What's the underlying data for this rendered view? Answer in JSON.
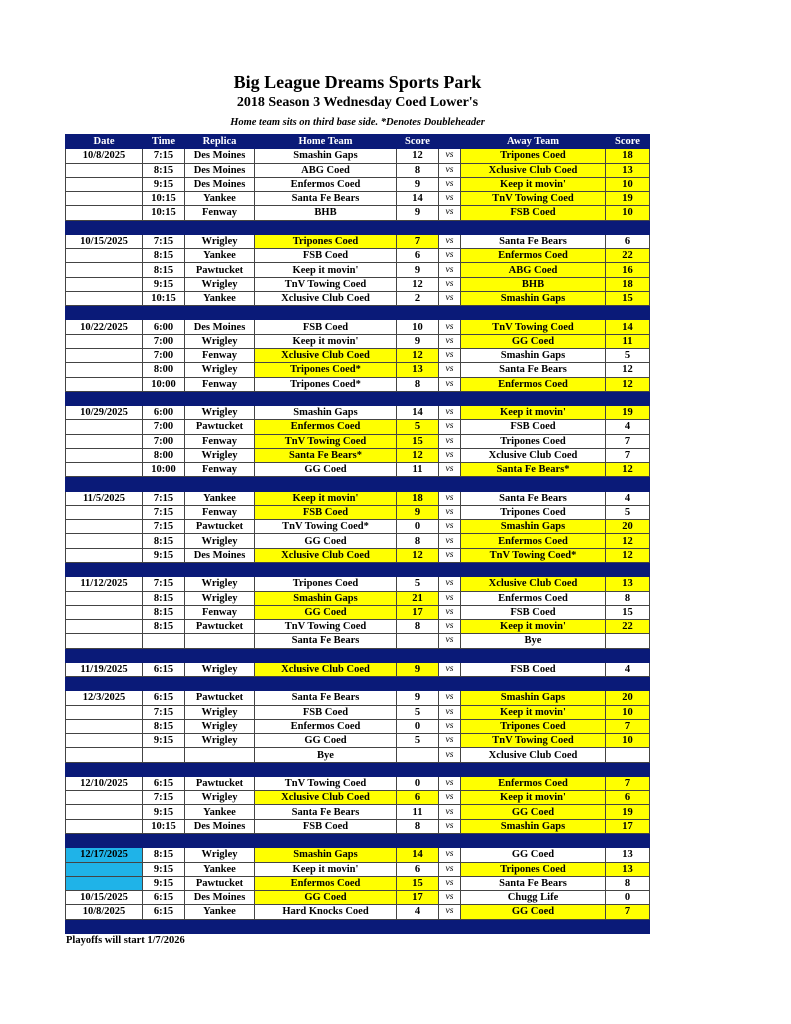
{
  "title": "Big League Dreams Sports Park",
  "subtitle": "2018 Season 3 Wednesday Coed Lower's",
  "note": "Home team sits on third base side.  *Denotes Doubleheader",
  "columns": [
    "Date",
    "Time",
    "Replica",
    "Home Team",
    "Score",
    "",
    "Away Team",
    "Score"
  ],
  "vs_label": "vs",
  "colors": {
    "header": "#0a1a78",
    "winner": "#ffff00",
    "highlight_date": "#1fb3e8"
  },
  "groups": [
    {
      "rows": [
        {
          "date": "10/8/2025",
          "time": "7:15",
          "replica": "Des Moines",
          "home": "Smashin Gaps",
          "hs": "12",
          "away": "Tripones Coed",
          "as": "18",
          "win": "a"
        },
        {
          "date": "",
          "time": "8:15",
          "replica": "Des Moines",
          "home": "ABG Coed",
          "hs": "8",
          "away": "Xclusive Club Coed",
          "as": "13",
          "win": "a"
        },
        {
          "date": "",
          "time": "9:15",
          "replica": "Des Moines",
          "home": "Enfermos Coed",
          "hs": "9",
          "away": "Keep it movin'",
          "as": "10",
          "win": "a"
        },
        {
          "date": "",
          "time": "10:15",
          "replica": "Yankee",
          "home": "Santa Fe Bears",
          "hs": "14",
          "away": "TnV Towing Coed",
          "as": "19",
          "win": "a"
        },
        {
          "date": "",
          "time": "10:15",
          "replica": "Fenway",
          "home": "BHB",
          "hs": "9",
          "away": "FSB Coed",
          "as": "10",
          "win": "a"
        }
      ]
    },
    {
      "rows": [
        {
          "date": "10/15/2025",
          "time": "7:15",
          "replica": "Wrigley",
          "home": "Tripones Coed",
          "hs": "7",
          "away": "Santa Fe Bears",
          "as": "6",
          "win": "h"
        },
        {
          "date": "",
          "time": "8:15",
          "replica": "Yankee",
          "home": "FSB Coed",
          "hs": "6",
          "away": "Enfermos Coed",
          "as": "22",
          "win": "a"
        },
        {
          "date": "",
          "time": "8:15",
          "replica": "Pawtucket",
          "home": "Keep it movin'",
          "hs": "9",
          "away": "ABG Coed",
          "as": "16",
          "win": "a"
        },
        {
          "date": "",
          "time": "9:15",
          "replica": "Wrigley",
          "home": "TnV Towing Coed",
          "hs": "12",
          "away": "BHB",
          "as": "18",
          "win": "a"
        },
        {
          "date": "",
          "time": "10:15",
          "replica": "Yankee",
          "home": "Xclusive Club Coed",
          "hs": "2",
          "away": "Smashin Gaps",
          "as": "15",
          "win": "a"
        }
      ]
    },
    {
      "rows": [
        {
          "date": "10/22/2025",
          "time": "6:00",
          "replica": "Des Moines",
          "home": "FSB Coed",
          "hs": "10",
          "away": "TnV Towing Coed",
          "as": "14",
          "win": "a"
        },
        {
          "date": "",
          "time": "7:00",
          "replica": "Wrigley",
          "home": "Keep it movin'",
          "hs": "9",
          "away": "GG Coed",
          "as": "11",
          "win": "a"
        },
        {
          "date": "",
          "time": "7:00",
          "replica": "Fenway",
          "home": "Xclusive Club Coed",
          "hs": "12",
          "away": "Smashin Gaps",
          "as": "5",
          "win": "h"
        },
        {
          "date": "",
          "time": "8:00",
          "replica": "Wrigley",
          "home": "Tripones Coed*",
          "hs": "13",
          "away": "Santa Fe Bears",
          "as": "12",
          "win": "h"
        },
        {
          "date": "",
          "time": "10:00",
          "replica": "Fenway",
          "home": "Tripones Coed*",
          "hs": "8",
          "away": "Enfermos Coed",
          "as": "12",
          "win": "a"
        }
      ]
    },
    {
      "rows": [
        {
          "date": "10/29/2025",
          "time": "6:00",
          "replica": "Wrigley",
          "home": "Smashin Gaps",
          "hs": "14",
          "away": "Keep it movin'",
          "as": "19",
          "win": "a"
        },
        {
          "date": "",
          "time": "7:00",
          "replica": "Pawtucket",
          "home": "Enfermos Coed",
          "hs": "5",
          "away": "FSB Coed",
          "as": "4",
          "win": "h"
        },
        {
          "date": "",
          "time": "7:00",
          "replica": "Fenway",
          "home": "TnV Towing Coed",
          "hs": "15",
          "away": "Tripones Coed",
          "as": "7",
          "win": "h"
        },
        {
          "date": "",
          "time": "8:00",
          "replica": "Wrigley",
          "home": "Santa Fe Bears*",
          "hs": "12",
          "away": "Xclusive Club Coed",
          "as": "7",
          "win": "h"
        },
        {
          "date": "",
          "time": "10:00",
          "replica": "Fenway",
          "home": "GG Coed",
          "hs": "11",
          "away": "Santa Fe Bears*",
          "as": "12",
          "win": "a"
        }
      ]
    },
    {
      "rows": [
        {
          "date": "11/5/2025",
          "time": "7:15",
          "replica": "Yankee",
          "home": "Keep it movin'",
          "hs": "18",
          "away": "Santa Fe Bears",
          "as": "4",
          "win": "h"
        },
        {
          "date": "",
          "time": "7:15",
          "replica": "Fenway",
          "home": "FSB Coed",
          "hs": "9",
          "away": "Tripones Coed",
          "as": "5",
          "win": "h"
        },
        {
          "date": "",
          "time": "7:15",
          "replica": "Pawtucket",
          "home": "TnV Towing Coed*",
          "hs": "0",
          "away": "Smashin Gaps",
          "as": "20",
          "win": "a"
        },
        {
          "date": "",
          "time": "8:15",
          "replica": "Wrigley",
          "home": "GG Coed",
          "hs": "8",
          "away": "Enfermos Coed",
          "as": "12",
          "win": "a"
        },
        {
          "date": "",
          "time": "9:15",
          "replica": "Des Moines",
          "home": "Xclusive Club Coed",
          "hs": "12",
          "away": "TnV Towing Coed*",
          "as": "12",
          "win": "b"
        }
      ]
    },
    {
      "rows": [
        {
          "date": "11/12/2025",
          "time": "7:15",
          "replica": "Wrigley",
          "home": "Tripones Coed",
          "hs": "5",
          "away": "Xclusive Club Coed",
          "as": "13",
          "win": "a"
        },
        {
          "date": "",
          "time": "8:15",
          "replica": "Wrigley",
          "home": "Smashin Gaps",
          "hs": "21",
          "away": "Enfermos Coed",
          "as": "8",
          "win": "h"
        },
        {
          "date": "",
          "time": "8:15",
          "replica": "Fenway",
          "home": "GG Coed",
          "hs": "17",
          "away": "FSB Coed",
          "as": "15",
          "win": "h"
        },
        {
          "date": "",
          "time": "8:15",
          "replica": "Pawtucket",
          "home": "TnV Towing Coed",
          "hs": "8",
          "away": "Keep it movin'",
          "as": "22",
          "win": "a"
        },
        {
          "date": "",
          "time": "",
          "replica": "",
          "home": "Santa Fe Bears",
          "hs": "",
          "away": "Bye",
          "as": "",
          "win": ""
        }
      ]
    },
    {
      "rows": [
        {
          "date": "11/19/2025",
          "time": "6:15",
          "replica": "Wrigley",
          "home": "Xclusive Club Coed",
          "hs": "9",
          "away": "FSB Coed",
          "as": "4",
          "win": "h"
        }
      ]
    },
    {
      "rows": [
        {
          "date": "12/3/2025",
          "time": "6:15",
          "replica": "Pawtucket",
          "home": "Santa Fe Bears",
          "hs": "9",
          "away": "Smashin Gaps",
          "as": "20",
          "win": "a"
        },
        {
          "date": "",
          "time": "7:15",
          "replica": "Wrigley",
          "home": "FSB Coed",
          "hs": "5",
          "away": "Keep it movin'",
          "as": "10",
          "win": "a"
        },
        {
          "date": "",
          "time": "8:15",
          "replica": "Wrigley",
          "home": "Enfermos Coed",
          "hs": "0",
          "away": "Tripones Coed",
          "as": "7",
          "win": "a"
        },
        {
          "date": "",
          "time": "9:15",
          "replica": "Wrigley",
          "home": "GG Coed",
          "hs": "5",
          "away": "TnV Towing Coed",
          "as": "10",
          "win": "a"
        },
        {
          "date": "",
          "time": "",
          "replica": "",
          "home": "Bye",
          "hs": "",
          "away": "Xclusive Club Coed",
          "as": "",
          "win": ""
        }
      ]
    },
    {
      "rows": [
        {
          "date": "12/10/2025",
          "time": "6:15",
          "replica": "Pawtucket",
          "home": "TnV Towing Coed",
          "hs": "0",
          "away": "Enfermos Coed",
          "as": "7",
          "win": "a"
        },
        {
          "date": "",
          "time": "7:15",
          "replica": "Wrigley",
          "home": "Xclusive Club Coed",
          "hs": "6",
          "away": "Keep it movin'",
          "as": "6",
          "win": "b"
        },
        {
          "date": "",
          "time": "9:15",
          "replica": "Yankee",
          "home": "Santa Fe Bears",
          "hs": "11",
          "away": "GG Coed",
          "as": "19",
          "win": "a"
        },
        {
          "date": "",
          "time": "10:15",
          "replica": "Des Moines",
          "home": "FSB Coed",
          "hs": "8",
          "away": "Smashin Gaps",
          "as": "17",
          "win": "a"
        }
      ]
    },
    {
      "rows": [
        {
          "date": "12/17/2025",
          "time": "8:15",
          "replica": "Wrigley",
          "home": "Smashin Gaps",
          "hs": "14",
          "away": "GG Coed",
          "as": "13",
          "win": "h",
          "cyan": true
        },
        {
          "date": "",
          "time": "9:15",
          "replica": "Yankee",
          "home": "Keep it movin'",
          "hs": "6",
          "away": "Tripones Coed",
          "as": "13",
          "win": "a",
          "cyan": true
        },
        {
          "date": "",
          "time": "9:15",
          "replica": "Pawtucket",
          "home": "Enfermos Coed",
          "hs": "15",
          "away": "Santa Fe Bears",
          "as": "8",
          "win": "h",
          "cyan": true
        },
        {
          "date": "10/15/2025",
          "time": "6:15",
          "replica": "Des Moines",
          "home": "GG Coed",
          "hs": "17",
          "away": "Chugg Life",
          "as": "0",
          "win": "h"
        },
        {
          "date": "10/8/2025",
          "time": "6:15",
          "replica": "Yankee",
          "home": "Hard Knocks Coed",
          "hs": "4",
          "away": "GG Coed",
          "as": "7",
          "win": "a"
        }
      ]
    }
  ],
  "footer": "Playoffs will start 1/7/2026"
}
